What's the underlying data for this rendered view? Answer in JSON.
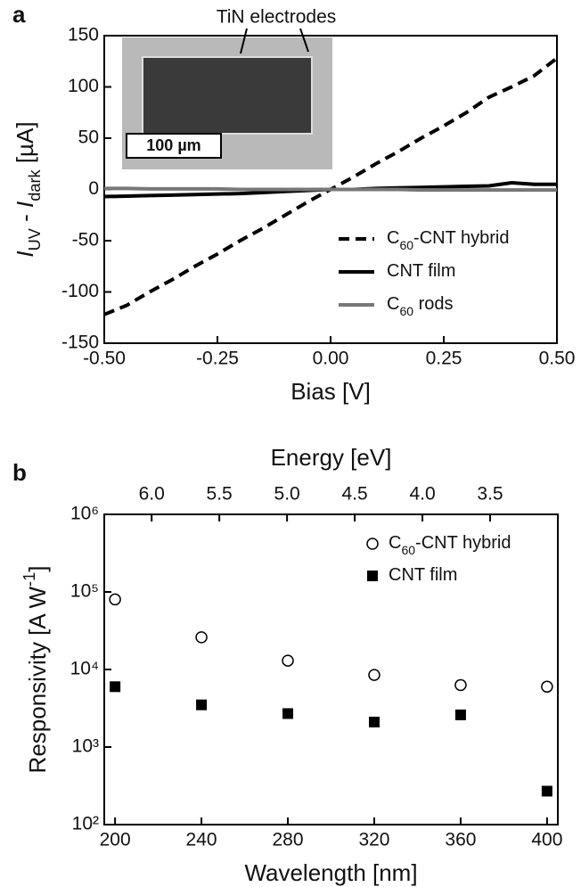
{
  "chart_data": [
    {
      "type": "line",
      "panel": "a",
      "xlabel": "Bias [V]",
      "ylabel": [
        {
          "text": "I"
        },
        {
          "text": "UV",
          "sub": true
        },
        {
          "text": " - "
        },
        {
          "text": "I"
        },
        {
          "text": "dark",
          "sub": true
        },
        {
          "text": " [µA]"
        }
      ],
      "annotations": [
        "TiN electrodes",
        "100 µm"
      ],
      "xlim": [
        -0.5,
        0.5
      ],
      "xticks": [
        {
          "value": -0.5,
          "label": "-0.50"
        },
        {
          "value": -0.25,
          "label": "-0.25"
        },
        {
          "value": 0,
          "label": "0.00"
        },
        {
          "value": 0.25,
          "label": "0.25"
        },
        {
          "value": 0.5,
          "label": "0.50"
        }
      ],
      "ylim": [
        -150,
        150
      ],
      "yticks": [
        -150,
        -100,
        -50,
        0,
        50,
        100,
        150
      ],
      "x": [
        -0.5,
        -0.45,
        -0.4,
        -0.35,
        -0.3,
        -0.25,
        -0.2,
        -0.15,
        -0.1,
        -0.05,
        0,
        0.05,
        0.1,
        0.15,
        0.2,
        0.25,
        0.3,
        0.35,
        0.4,
        0.45,
        0.5
      ],
      "series": [
        {
          "name": [
            {
              "text": "C"
            },
            {
              "text": "60",
              "sub": true
            },
            {
              "text": "-CNT hybrid"
            }
          ],
          "color": "#000000",
          "dash": true,
          "values": [
            -122,
            -113,
            -100,
            -88,
            -75,
            -63,
            -50,
            -38,
            -25,
            -12,
            0,
            12,
            25,
            37,
            50,
            62,
            75,
            90,
            100,
            111,
            128
          ]
        },
        {
          "name": [
            {
              "text": "CNT film"
            }
          ],
          "color": "#000000",
          "dash": false,
          "values": [
            -7,
            -6.5,
            -6,
            -5.5,
            -5,
            -4.5,
            -4,
            -3,
            -2,
            -1,
            0,
            0,
            1,
            1.5,
            2,
            2.5,
            3,
            3.5,
            6.5,
            5,
            5
          ]
        },
        {
          "name": [
            {
              "text": "C"
            },
            {
              "text": "60",
              "sub": true
            },
            {
              "text": " rods"
            }
          ],
          "color": "#777777",
          "dash": false,
          "values": [
            1,
            1,
            0.5,
            0.5,
            0.5,
            0.5,
            0,
            0,
            0,
            0,
            0,
            0,
            0,
            0,
            -0.5,
            -0.5,
            -0.5,
            -0.5,
            -0.5,
            -0.5,
            -0.5
          ]
        }
      ]
    },
    {
      "type": "scatter",
      "panel": "b",
      "xlabel": "Wavelength [nm]",
      "x2label": "Energy [eV]",
      "ylabel": [
        {
          "text": "Responsivity [A W"
        },
        {
          "text": "-1",
          "sup": true
        },
        {
          "text": "]"
        }
      ],
      "xlim": [
        195,
        405
      ],
      "xticks": [
        200,
        240,
        280,
        320,
        360,
        400
      ],
      "x2lim": [
        6.35,
        3.0
      ],
      "x2ticks": [
        {
          "value": 6,
          "label": "6.0"
        },
        {
          "value": 5.5,
          "label": "5.5"
        },
        {
          "value": 5,
          "label": "5.0"
        },
        {
          "value": 4.5,
          "label": "4.5"
        },
        {
          "value": 4,
          "label": "4.0"
        },
        {
          "value": 3.5,
          "label": "3.5"
        }
      ],
      "ylim": [
        100,
        1000000
      ],
      "log_y": true,
      "yticks": [
        {
          "value": 100,
          "label": "10²"
        },
        {
          "value": 1000,
          "label": "10³"
        },
        {
          "value": 10000,
          "label": "10⁴"
        },
        {
          "value": 100000,
          "label": "10⁵"
        },
        {
          "value": 1000000,
          "label": "10⁶"
        }
      ],
      "x": [
        200,
        240,
        280,
        320,
        360,
        400
      ],
      "series": [
        {
          "name": [
            {
              "text": "C"
            },
            {
              "text": "60",
              "sub": true
            },
            {
              "text": "-CNT hybrid"
            }
          ],
          "color": "#000000",
          "marker": "open-circle",
          "values": [
            80000,
            26000,
            13000,
            8500,
            6300,
            6000
          ]
        },
        {
          "name": [
            {
              "text": "CNT film"
            }
          ],
          "color": "#000000",
          "marker": "filled-square",
          "values": [
            6000,
            3500,
            2700,
            2100,
            2600,
            270
          ]
        }
      ]
    }
  ]
}
